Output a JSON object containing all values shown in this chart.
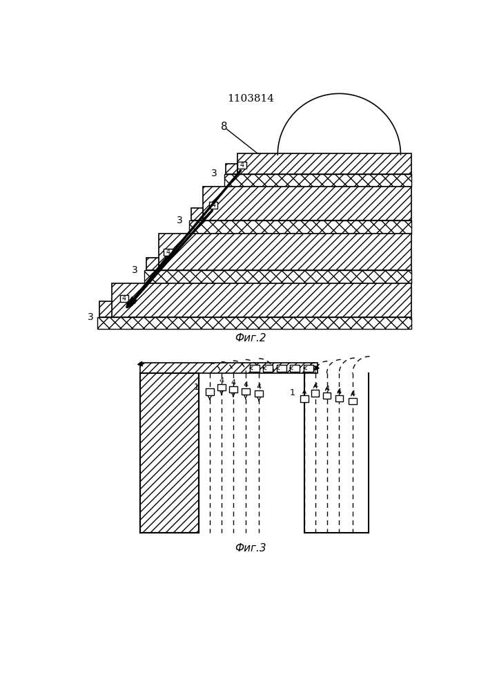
{
  "title": "1103814",
  "fig2_label": "Фиг.2",
  "fig3_label": "Фиг.3",
  "bg_color": "#ffffff",
  "line_color": "#000000"
}
